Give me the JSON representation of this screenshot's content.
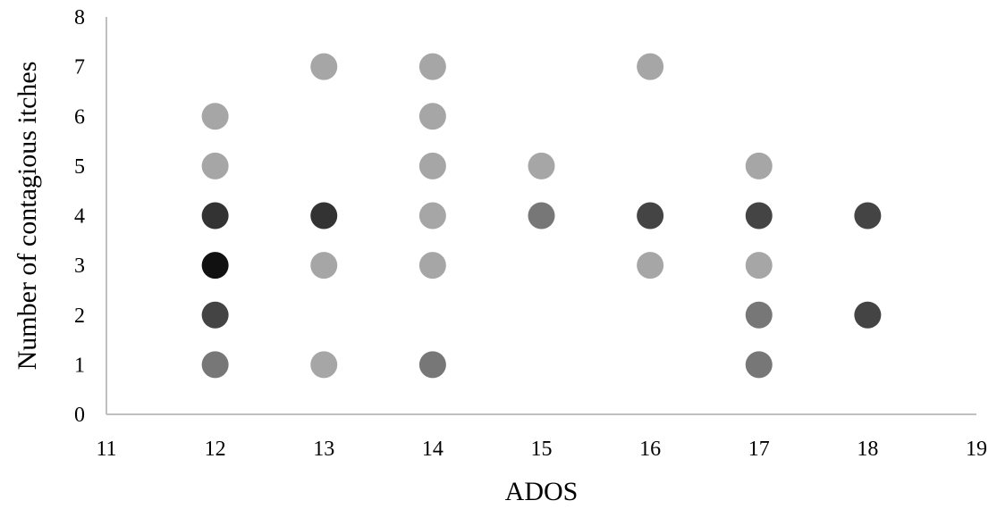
{
  "chart_data": {
    "type": "scatter",
    "title": "",
    "xlabel": "ADOS",
    "ylabel": "Number of contagious itches",
    "xlim": [
      11,
      19
    ],
    "ylim": [
      0,
      8
    ],
    "xticks": [
      11,
      12,
      13,
      14,
      15,
      16,
      17,
      18,
      19
    ],
    "yticks": [
      0,
      1,
      2,
      3,
      4,
      5,
      6,
      7,
      8
    ],
    "grid": false,
    "legend": "none",
    "points": [
      {
        "x": 12,
        "y": 6,
        "color": "#a6a6a6"
      },
      {
        "x": 12,
        "y": 5,
        "color": "#a6a6a6"
      },
      {
        "x": 12,
        "y": 4,
        "color": "#333333"
      },
      {
        "x": 12,
        "y": 3,
        "color": "#111111"
      },
      {
        "x": 12,
        "y": 2,
        "color": "#444444"
      },
      {
        "x": 12,
        "y": 1,
        "color": "#777777"
      },
      {
        "x": 13,
        "y": 7,
        "color": "#a6a6a6"
      },
      {
        "x": 13,
        "y": 4,
        "color": "#333333"
      },
      {
        "x": 13,
        "y": 3,
        "color": "#a6a6a6"
      },
      {
        "x": 13,
        "y": 1,
        "color": "#a6a6a6"
      },
      {
        "x": 14,
        "y": 7,
        "color": "#a6a6a6"
      },
      {
        "x": 14,
        "y": 6,
        "color": "#a6a6a6"
      },
      {
        "x": 14,
        "y": 5,
        "color": "#a6a6a6"
      },
      {
        "x": 14,
        "y": 4,
        "color": "#a6a6a6"
      },
      {
        "x": 14,
        "y": 3,
        "color": "#a6a6a6"
      },
      {
        "x": 14,
        "y": 1,
        "color": "#777777"
      },
      {
        "x": 15,
        "y": 5,
        "color": "#a6a6a6"
      },
      {
        "x": 15,
        "y": 4,
        "color": "#777777"
      },
      {
        "x": 16,
        "y": 7,
        "color": "#a6a6a6"
      },
      {
        "x": 16,
        "y": 4,
        "color": "#444444"
      },
      {
        "x": 16,
        "y": 3,
        "color": "#a6a6a6"
      },
      {
        "x": 17,
        "y": 5,
        "color": "#a6a6a6"
      },
      {
        "x": 17,
        "y": 4,
        "color": "#444444"
      },
      {
        "x": 17,
        "y": 3,
        "color": "#a6a6a6"
      },
      {
        "x": 17,
        "y": 2,
        "color": "#777777"
      },
      {
        "x": 17,
        "y": 1,
        "color": "#777777"
      },
      {
        "x": 18,
        "y": 4,
        "color": "#444444"
      },
      {
        "x": 18,
        "y": 2,
        "color": "#444444"
      }
    ]
  }
}
